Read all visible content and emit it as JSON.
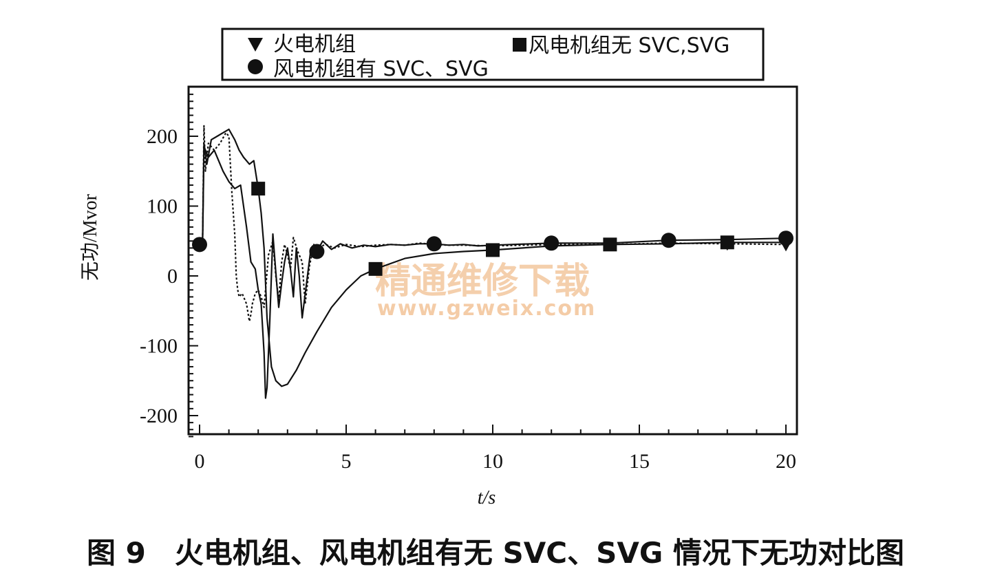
{
  "chart_data": {
    "type": "line",
    "xlabel": "t/s",
    "ylabel": "无功/Mvor",
    "xlim": [
      0,
      20
    ],
    "ylim": [
      -235,
      270
    ],
    "xticks": [
      0,
      5,
      10,
      15,
      20
    ],
    "yticks": [
      -200,
      -100,
      0,
      100,
      200
    ],
    "grid": false,
    "legend_position": "top",
    "series": [
      {
        "name": "火电机组",
        "marker": "triangle-down",
        "line_style": "dashed",
        "x": [
          0,
          0.1,
          0.15,
          0.2,
          0.3,
          0.5,
          0.7,
          0.9,
          1.0,
          1.1,
          1.2,
          1.25,
          1.3,
          1.35,
          1.45,
          1.6,
          1.7,
          1.75,
          1.8,
          1.9,
          2.0,
          2.1,
          2.2,
          2.35,
          2.5,
          2.6,
          2.7,
          2.8,
          2.9,
          3.0,
          3.1,
          3.2,
          3.35,
          3.5,
          3.6,
          3.75,
          3.9,
          4.0,
          4.3,
          4.6,
          5.0,
          5.5,
          6.0,
          6.5,
          7.0,
          7.5,
          8.0,
          8.5,
          9.0,
          10.0,
          12.0,
          14.0,
          16.0,
          18.0,
          20.0
        ],
        "y": [
          45,
          45,
          215,
          150,
          190,
          180,
          190,
          205,
          200,
          120,
          60,
          0,
          -20,
          -30,
          -25,
          -40,
          -65,
          -55,
          -40,
          -25,
          -20,
          -30,
          -45,
          30,
          50,
          0,
          -35,
          20,
          45,
          30,
          10,
          55,
          35,
          20,
          -40,
          15,
          45,
          40,
          45,
          40,
          45,
          42,
          44,
          45,
          44,
          47,
          45,
          44,
          44,
          43,
          45,
          45,
          47,
          46,
          45
        ]
      },
      {
        "name": "风电机组无 SVC,SVG",
        "marker": "square",
        "line_style": "solid",
        "x": [
          0,
          0.1,
          0.15,
          0.25,
          0.4,
          0.6,
          0.8,
          1.0,
          1.2,
          1.35,
          1.5,
          1.7,
          1.85,
          2.0,
          2.1,
          2.2,
          2.3,
          2.45,
          2.6,
          2.8,
          3.0,
          3.3,
          3.6,
          4.0,
          4.5,
          5.0,
          5.5,
          6.0,
          7.0,
          8.0,
          9.0,
          10.0,
          12.0,
          14.0,
          16.0,
          18.0,
          20.0
        ],
        "y": [
          45,
          45,
          190,
          160,
          195,
          200,
          205,
          210,
          195,
          180,
          170,
          160,
          165,
          125,
          90,
          40,
          -60,
          -130,
          -150,
          -158,
          -155,
          -135,
          -110,
          -80,
          -45,
          -20,
          0,
          10,
          25,
          32,
          35,
          37,
          43,
          45,
          46,
          48,
          48
        ]
      },
      {
        "name": "风电机组有 SVC、SVG",
        "marker": "circle",
        "line_style": "solid",
        "x": [
          0,
          0.1,
          0.15,
          0.3,
          0.5,
          0.8,
          1.0,
          1.2,
          1.4,
          1.6,
          1.75,
          1.9,
          2.0,
          2.1,
          2.2,
          2.25,
          2.3,
          2.4,
          2.5,
          2.6,
          2.7,
          2.8,
          2.9,
          3.0,
          3.1,
          3.2,
          3.3,
          3.4,
          3.5,
          3.65,
          3.8,
          3.9,
          4.0,
          4.2,
          4.5,
          4.8,
          5.2,
          5.6,
          6.0,
          6.5,
          7.0,
          7.5,
          8.0,
          8.5,
          9.0,
          9.5,
          10.0,
          12.0,
          14.0,
          16.0,
          18.0,
          20.0
        ],
        "y": [
          45,
          45,
          185,
          170,
          180,
          150,
          135,
          125,
          130,
          70,
          20,
          10,
          -20,
          -40,
          -110,
          -175,
          -160,
          -60,
          60,
          5,
          -45,
          -10,
          20,
          40,
          10,
          -30,
          40,
          0,
          -60,
          -10,
          40,
          30,
          35,
          50,
          38,
          46,
          40,
          44,
          42,
          45,
          44,
          46,
          46,
          44,
          45,
          43,
          44,
          47,
          47,
          51,
          52,
          54
        ]
      }
    ]
  },
  "legend": {
    "items": [
      {
        "label": "火电机组",
        "marker": "triangle-down"
      },
      {
        "label": "风电机组无 SVC,SVG",
        "marker": "square"
      },
      {
        "label": "风电机组有 SVC、SVG",
        "marker": "circle"
      }
    ]
  },
  "caption": "图 9　火电机组、风电机组有无 SVC、SVG 情况下无功对比图",
  "watermark": {
    "text_cn": "精通维修下载",
    "text_url": "www.gzweix.com",
    "color": "#f3c79e"
  },
  "colors": {
    "ink": "#111111",
    "background": "#ffffff"
  }
}
